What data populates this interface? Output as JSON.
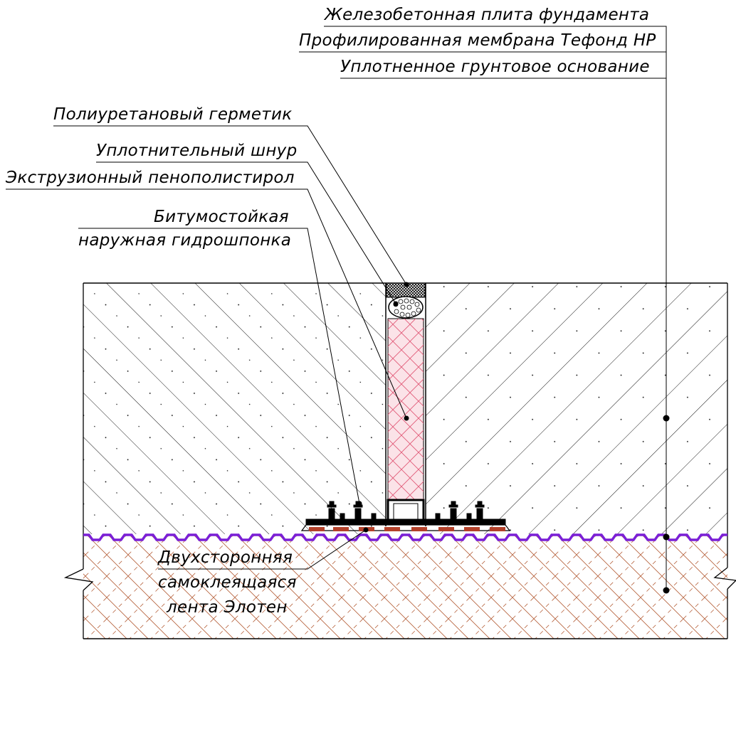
{
  "labels": {
    "slab": "Железобетонная плита фундамента",
    "membrane": "Профилированная мембрана Тефонд НР",
    "soil": "Уплотненное грунтовое основание",
    "sealant": "Полиуретановый герметик",
    "cord": "Уплотнительный шнур",
    "xps": "Экструзионный пенополистирол",
    "waterstop_line1": "Битумостойкая",
    "waterstop_line2": "наружная гидрошпонка",
    "tape_line1": "Двухсторонняя",
    "tape_line2": "самоклеящаяся",
    "tape_line3": "лента Элотен"
  },
  "colors": {
    "line": "#000000",
    "membrane": "#7a1fd6",
    "soil_hatch": "#b5603a",
    "xps_hatch": "#e05a78",
    "xps_fill": "#fbe3e8",
    "tape": "#b4412a"
  }
}
